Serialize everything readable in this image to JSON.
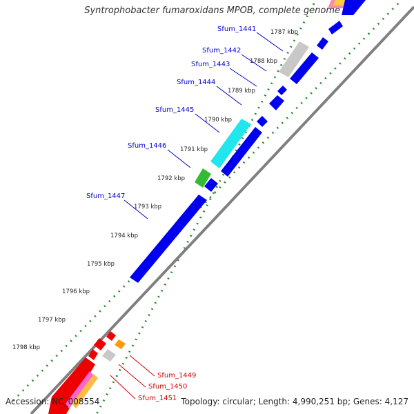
{
  "title": "Syntrophobacter fumaroxidans MPOB, complete genome",
  "footer": {
    "accession": "Accession: NC_008554",
    "summary": "Topology: circular; Length: 4,990,251 bp; Genes: 4,127"
  },
  "colors": {
    "genome_line": "#7f7f7f",
    "tick_dots": "#2e8b2e",
    "blue_label": "#0000cc",
    "red_label": "#cc0000"
  },
  "kbp_labels": [
    "1787 kbp",
    "1788 kbp",
    "1789 kbp",
    "1790 kbp",
    "1791 kbp",
    "1792 kbp",
    "1793 kbp",
    "1794 kbp",
    "1795 kbp",
    "1796 kbp",
    "1797 kbp",
    "1798 kbp"
  ],
  "gene_labels": [
    {
      "name": "Sfum_1441",
      "color": "blue"
    },
    {
      "name": "Sfum_1442",
      "color": "blue"
    },
    {
      "name": "Sfum_1443",
      "color": "blue"
    },
    {
      "name": "Sfum_1444",
      "color": "blue"
    },
    {
      "name": "Sfum_1445",
      "color": "blue"
    },
    {
      "name": "Sfum_1446",
      "color": "blue"
    },
    {
      "name": "Sfum_1447",
      "color": "blue"
    },
    {
      "name": "Sfum_1449",
      "color": "red"
    },
    {
      "name": "Sfum_1450",
      "color": "red"
    },
    {
      "name": "Sfum_1451",
      "color": "red"
    }
  ]
}
